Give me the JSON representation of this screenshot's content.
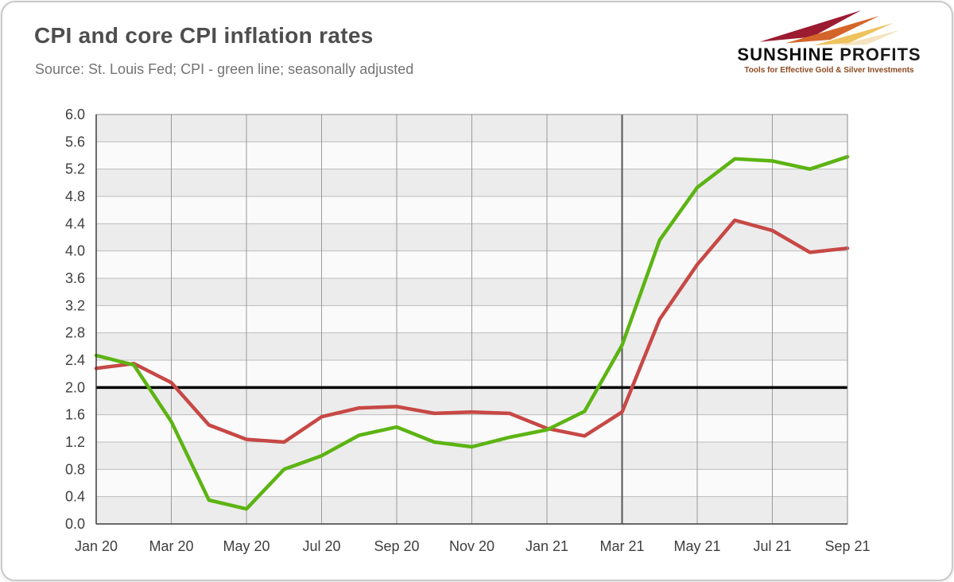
{
  "header": {
    "title": "CPI and core CPI inflation rates",
    "subtitle": "Source: St. Louis Fed; CPI - green line; seasonally adjusted"
  },
  "logo": {
    "name_primary": "SUNSHINE",
    "name_secondary": "PROFITS",
    "tagline": "Tools for Effective Gold & Silver Investments",
    "arrow_colors": [
      "#9b1b30",
      "#d4652a",
      "#eec35e",
      "#f5e3c0"
    ]
  },
  "chart_data": {
    "type": "line",
    "title": "CPI and core CPI inflation rates",
    "x": [
      "Jan 20",
      "Feb 20",
      "Mar 20",
      "Apr 20",
      "May 20",
      "Jun 20",
      "Jul 20",
      "Aug 20",
      "Sep 20",
      "Oct 20",
      "Nov 20",
      "Dec 20",
      "Jan 21",
      "Feb 21",
      "Mar 21",
      "Apr 21",
      "May 21",
      "Jun 21",
      "Jul 21",
      "Aug 21",
      "Sep 21"
    ],
    "x_tick_labels": [
      "Jan 20",
      "Mar 20",
      "May 20",
      "Jul 20",
      "Sep 20",
      "Nov 20",
      "Jan 21",
      "Mar 21",
      "May 21",
      "Jul 21",
      "Sep 21"
    ],
    "series": [
      {
        "name": "CPI (green line)",
        "color": "#5cb413",
        "values": [
          2.47,
          2.33,
          1.5,
          0.35,
          0.22,
          0.8,
          1.0,
          1.3,
          1.42,
          1.2,
          1.13,
          1.27,
          1.38,
          1.65,
          2.62,
          4.16,
          4.93,
          5.35,
          5.32,
          5.2,
          5.38
        ]
      },
      {
        "name": "Core CPI (red line)",
        "color": "#c74845",
        "values": [
          2.28,
          2.35,
          2.07,
          1.45,
          1.24,
          1.2,
          1.57,
          1.7,
          1.72,
          1.62,
          1.64,
          1.62,
          1.4,
          1.29,
          1.64,
          3.0,
          3.8,
          4.45,
          4.3,
          3.98,
          4.04
        ]
      }
    ],
    "reference_line": {
      "value": 2.0,
      "color": "#000000"
    },
    "ylim": [
      0.0,
      6.0
    ],
    "ytick_step": 0.4,
    "grid": true,
    "emphasized_gridline_x": "Mar 21",
    "legend_position": "none"
  }
}
